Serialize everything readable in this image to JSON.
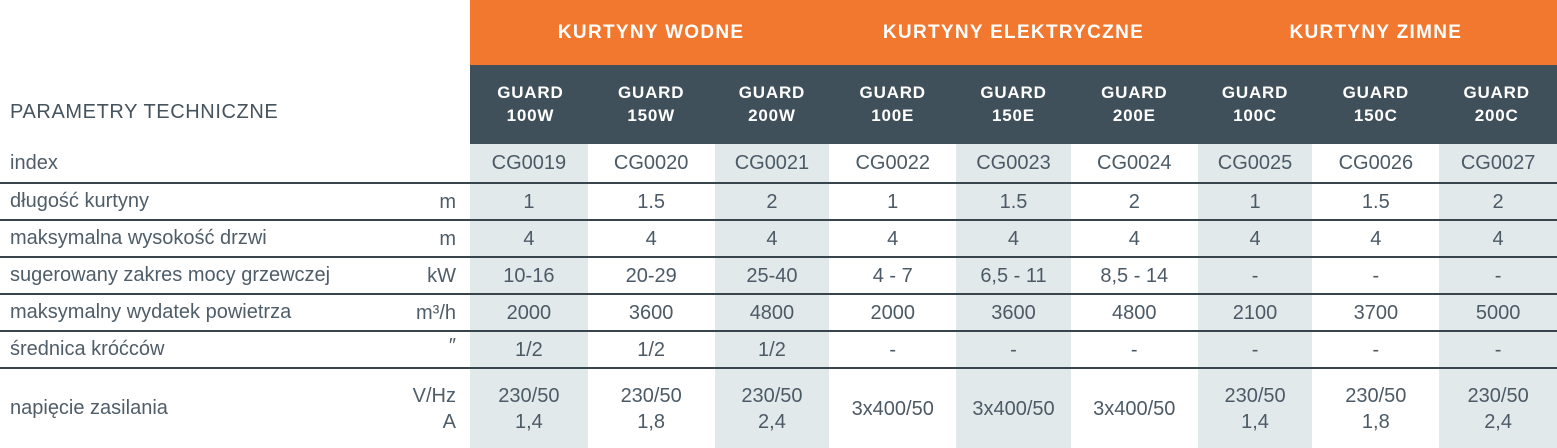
{
  "title": "PARAMETRY TECHNICZNE",
  "colors": {
    "accent_orange": "#F1782E",
    "header_slate": "#40505A",
    "cell_shade": "#E2E9EB",
    "separator_line": "#39454D",
    "text": "#4C5A66"
  },
  "table": {
    "groups": [
      {
        "label": "KURTYNY WODNE"
      },
      {
        "label": "KURTYNY ELEKTRYCZNE"
      },
      {
        "label": "KURTYNY ZIMNE"
      }
    ],
    "models": [
      {
        "name": "GUARD",
        "variant": "100W"
      },
      {
        "name": "GUARD",
        "variant": "150W"
      },
      {
        "name": "GUARD",
        "variant": "200W"
      },
      {
        "name": "GUARD",
        "variant": "100E"
      },
      {
        "name": "GUARD",
        "variant": "150E"
      },
      {
        "name": "GUARD",
        "variant": "200E"
      },
      {
        "name": "GUARD",
        "variant": "100C"
      },
      {
        "name": "GUARD",
        "variant": "150C"
      },
      {
        "name": "GUARD",
        "variant": "200C"
      }
    ],
    "rows": [
      {
        "label": "index",
        "unit": "",
        "values": [
          "CG0019",
          "CG0020",
          "CG0021",
          "CG0022",
          "CG0023",
          "CG0024",
          "CG0025",
          "CG0026",
          "CG0027"
        ]
      },
      {
        "label": "długość kurtyny",
        "unit": "m",
        "values": [
          "1",
          "1.5",
          "2",
          "1",
          "1.5",
          "2",
          "1",
          "1.5",
          "2"
        ]
      },
      {
        "label": "maksymalna wysokość drzwi",
        "unit": "m",
        "values": [
          "4",
          "4",
          "4",
          "4",
          "4",
          "4",
          "4",
          "4",
          "4"
        ]
      },
      {
        "label": "sugerowany zakres mocy grzewczej",
        "unit": "kW",
        "values": [
          "10-16",
          "20-29",
          "25-40",
          "4 - 7",
          "6,5 - 11",
          "8,5 - 14",
          "-",
          "-",
          "-"
        ]
      },
      {
        "label": "maksymalny wydatek powietrza",
        "unit": "m³/h",
        "values": [
          "2000",
          "3600",
          "4800",
          "2000",
          "3600",
          "4800",
          "2100",
          "3700",
          "5000"
        ]
      },
      {
        "label": "średnica króćców",
        "unit": "″",
        "values": [
          "1/2",
          "1/2",
          "1/2",
          "-",
          "-",
          "-",
          "-",
          "-",
          "-"
        ]
      },
      {
        "label": "napięcie zasilania",
        "unit": "V/Hz\nA",
        "values": [
          "230/50\n1,4",
          "230/50\n1,8",
          "230/50\n2,4",
          "3x400/50",
          "3x400/50",
          "3x400/50",
          "230/50\n1,4",
          "230/50\n1,8",
          "230/50\n2,4"
        ]
      }
    ]
  }
}
